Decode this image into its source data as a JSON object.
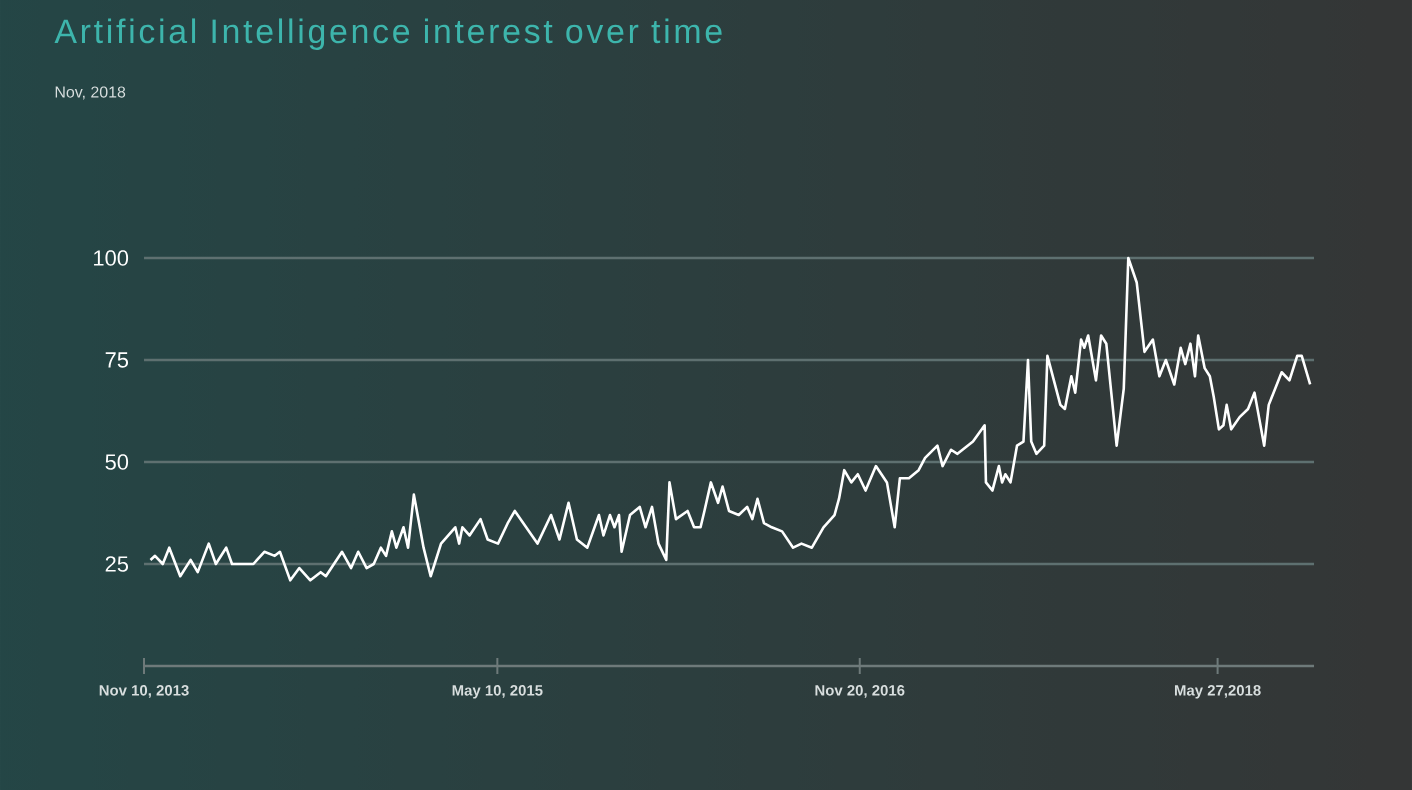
{
  "chart_data": {
    "type": "line",
    "title": "Artificial Intelligence interest over time",
    "annotations": [
      "Nov, 2018"
    ],
    "x": [
      "2013-11-20",
      "2013-11-27",
      "2013-12-09",
      "2013-12-19",
      "2014-01-05",
      "2014-01-21",
      "2014-02-01",
      "2014-02-18",
      "2014-03-01",
      "2014-03-17",
      "2014-03-26",
      "2014-04-28",
      "2014-05-15",
      "2014-05-31",
      "2014-06-08",
      "2014-06-24",
      "2014-07-08",
      "2014-07-25",
      "2014-08-10",
      "2014-08-18",
      "2014-09-12",
      "2014-09-26",
      "2014-10-07",
      "2014-10-20",
      "2014-10-31",
      "2014-11-11",
      "2014-11-19",
      "2014-11-28",
      "2014-12-05",
      "2014-12-16",
      "2014-12-23",
      "2015-01-01",
      "2015-01-16",
      "2015-01-27",
      "2015-02-12",
      "2015-03-06",
      "2015-03-12",
      "2015-03-17",
      "2015-03-28",
      "2015-04-14",
      "2015-04-25",
      "2015-05-11",
      "2015-05-26",
      "2015-06-06",
      "2015-07-11",
      "2015-08-01",
      "2015-08-14",
      "2015-08-28",
      "2015-09-10",
      "2015-09-26",
      "2015-10-14",
      "2015-10-21",
      "2015-10-31",
      "2015-11-07",
      "2015-11-14",
      "2015-11-18",
      "2015-12-01",
      "2015-12-16",
      "2015-12-25",
      "2016-01-04",
      "2016-01-14",
      "2016-01-26",
      "2016-01-31",
      "2016-02-10",
      "2016-02-28",
      "2016-03-09",
      "2016-03-19",
      "2016-03-25",
      "2016-04-04",
      "2016-04-15",
      "2016-04-22",
      "2016-05-02",
      "2016-05-17",
      "2016-05-30",
      "2016-06-07",
      "2016-06-15",
      "2016-06-25",
      "2016-07-07",
      "2016-07-23",
      "2016-08-09",
      "2016-08-22",
      "2016-09-07",
      "2016-09-25",
      "2016-10-12",
      "2016-10-19",
      "2016-10-27",
      "2016-11-07",
      "2016-11-17",
      "2016-11-29",
      "2016-12-15",
      "2017-01-01",
      "2017-01-13",
      "2017-01-21",
      "2017-02-04",
      "2017-02-19",
      "2017-03-01",
      "2017-03-20",
      "2017-03-28",
      "2017-04-10",
      "2017-04-20",
      "2017-05-14",
      "2017-06-01",
      "2017-06-03",
      "2017-06-13",
      "2017-06-23",
      "2017-06-28",
      "2017-07-03",
      "2017-07-11",
      "2017-07-21",
      "2017-07-31",
      "2017-08-07",
      "2017-08-12",
      "2017-08-20",
      "2017-09-01",
      "2017-09-06",
      "2017-09-26",
      "2017-10-03",
      "2017-10-13",
      "2017-10-19",
      "2017-10-28",
      "2017-11-02",
      "2017-11-08",
      "2017-11-20",
      "2017-11-28",
      "2017-12-06",
      "2017-12-22",
      "2018-01-02",
      "2018-01-09",
      "2018-01-22",
      "2018-02-03",
      "2018-02-16",
      "2018-02-26",
      "2018-03-08",
      "2018-03-21",
      "2018-03-31",
      "2018-04-07",
      "2018-04-15",
      "2018-04-22",
      "2018-04-27",
      "2018-05-07",
      "2018-05-15",
      "2018-05-21",
      "2018-05-29",
      "2018-06-05",
      "2018-06-10",
      "2018-06-17",
      "2018-06-30",
      "2018-07-13",
      "2018-07-23",
      "2018-08-07",
      "2018-08-14",
      "2018-09-03",
      "2018-09-15",
      "2018-09-27",
      "2018-10-04",
      "2018-10-17"
    ],
    "series": [
      {
        "color": "#ffffff",
        "values": [
          26,
          27,
          25,
          29,
          22,
          26,
          23,
          30,
          25,
          29,
          25,
          25,
          28,
          27,
          28,
          21,
          24,
          21,
          23,
          22,
          28,
          24,
          28,
          24,
          25,
          29,
          27,
          33,
          29,
          34,
          29,
          42,
          29,
          22,
          30,
          34,
          30,
          34,
          32,
          36,
          31,
          30,
          35,
          38,
          30,
          37,
          31,
          40,
          31,
          29,
          37,
          32,
          37,
          34,
          37,
          28,
          37,
          39,
          34,
          39,
          30,
          26,
          45,
          36,
          38,
          34,
          34,
          38,
          45,
          40,
          44,
          38,
          37,
          39,
          36,
          41,
          35,
          34,
          33,
          29,
          30,
          29,
          34,
          37,
          41,
          48,
          45,
          47,
          43,
          49,
          45,
          34,
          46,
          46,
          48,
          51,
          54,
          49,
          53,
          52,
          55,
          59,
          45,
          43,
          49,
          45,
          47,
          45,
          54,
          55,
          75,
          55,
          52,
          54,
          76,
          64,
          63,
          71,
          67,
          80,
          78,
          81,
          70,
          81,
          79,
          54,
          68,
          100,
          94,
          77,
          80,
          71,
          75,
          69,
          78,
          74,
          79,
          71,
          81,
          73,
          71,
          66,
          58,
          59,
          64,
          58,
          61,
          63,
          67,
          54,
          64,
          72,
          70,
          76,
          76,
          69
        ]
      }
    ],
    "xlim": [
      "2013-11-10",
      "2018-10-23"
    ],
    "xticks": [
      {
        "value": "2013-11-10",
        "label": "Nov 10, 2013"
      },
      {
        "value": "2015-05-10",
        "label": "May 10, 2015"
      },
      {
        "value": "2016-11-20",
        "label": "Nov 20, 2016"
      },
      {
        "value": "2018-05-27",
        "label": "May 27,2018"
      }
    ],
    "ylim": [
      0,
      100
    ],
    "yticks": [
      25,
      50,
      75,
      100
    ],
    "grid": "y",
    "marker": "none",
    "line_style": "solid"
  }
}
